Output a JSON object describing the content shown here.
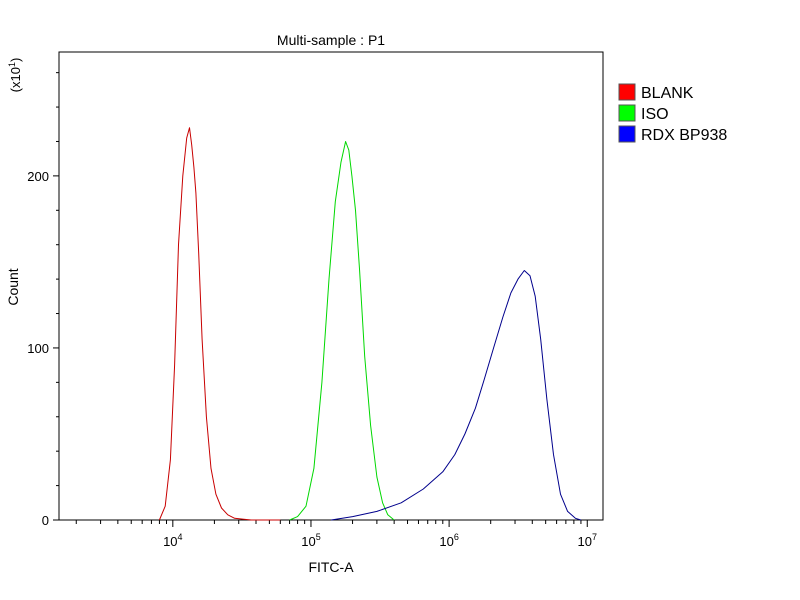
{
  "chart_data": {
    "type": "line",
    "title": "Multi-sample : P1",
    "xlabel": "FITC-A",
    "ylabel": "Count",
    "y_multiplier": "(x10",
    "y_multiplier_exp": "1",
    "y_multiplier_close": ")",
    "x_scale": "log",
    "xlim": [
      1500,
      13000000
    ],
    "ylim": [
      0,
      272
    ],
    "x_ticks": [
      {
        "base": "10",
        "exp": "4",
        "value": 10000
      },
      {
        "base": "10",
        "exp": "5",
        "value": 100000
      },
      {
        "base": "10",
        "exp": "6",
        "value": 1000000
      },
      {
        "base": "10",
        "exp": "7",
        "value": 10000000
      }
    ],
    "y_ticks": [
      {
        "label": "0",
        "value": 0
      },
      {
        "label": "100",
        "value": 100
      },
      {
        "label": "200",
        "value": 200
      }
    ],
    "legend_position": "right",
    "series": [
      {
        "name": "BLANK",
        "color": "#c80000",
        "swatch": "#ff0000",
        "x": [
          8000,
          8800,
          9600,
          10300,
          11000,
          11800,
          12600,
          13200,
          13700,
          14200,
          14700,
          15400,
          16300,
          17500,
          18900,
          20500,
          22500,
          25000,
          28000,
          32000,
          37000,
          43000,
          50000,
          60000
        ],
        "y": [
          0,
          8,
          35,
          90,
          160,
          200,
          222,
          228,
          218,
          205,
          190,
          155,
          105,
          60,
          30,
          15,
          7,
          3,
          1,
          0.5,
          0,
          0,
          0,
          0
        ]
      },
      {
        "name": "ISO",
        "color": "#00d800",
        "swatch": "#00ff00",
        "x": [
          70000,
          80000,
          92000,
          105000,
          120000,
          135000,
          150000,
          165000,
          178000,
          188000,
          198000,
          210000,
          225000,
          245000,
          270000,
          300000,
          330000,
          360000,
          400000
        ],
        "y": [
          0,
          2,
          8,
          30,
          80,
          140,
          185,
          208,
          220,
          215,
          200,
          180,
          145,
          95,
          55,
          25,
          10,
          3,
          0
        ]
      },
      {
        "name": "RDX BP938",
        "color": "#00008c",
        "swatch": "#0000ff",
        "x": [
          140000,
          200000,
          300000,
          450000,
          650000,
          900000,
          1100000,
          1300000,
          1550000,
          1800000,
          2100000,
          2450000,
          2800000,
          3150000,
          3500000,
          3850000,
          4200000,
          4600000,
          5100000,
          5700000,
          6400000,
          7200000,
          8200000,
          9000000
        ],
        "y": [
          0,
          2,
          5,
          10,
          18,
          28,
          38,
          50,
          65,
          82,
          100,
          118,
          132,
          140,
          145,
          142,
          130,
          105,
          70,
          38,
          15,
          5,
          1,
          0
        ]
      }
    ]
  }
}
